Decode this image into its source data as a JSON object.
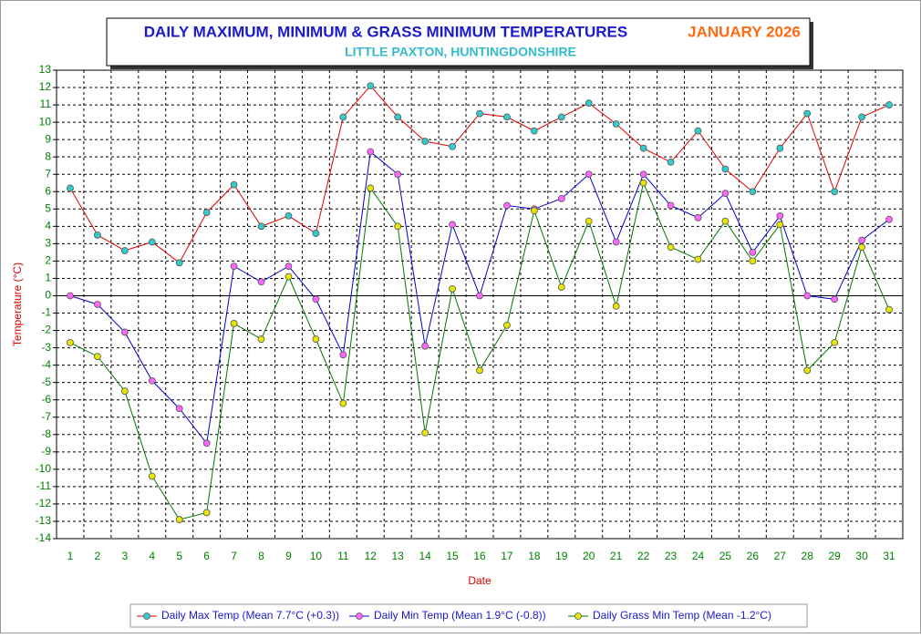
{
  "chart_data": {
    "type": "line",
    "title": "DAILY MAXIMUM, MINIMUM & GRASS MINIMUM TEMPERATURES",
    "period": "JANUARY 2026",
    "subtitle": "LITTLE PAXTON, HUNTINGDONSHIRE",
    "x_label": "Date",
    "y_label": "Temperature (°C)",
    "categories": [
      "1",
      "2",
      "3",
      "4",
      "5",
      "6",
      "7",
      "8",
      "9",
      "10",
      "11",
      "12",
      "13",
      "14",
      "15",
      "16",
      "17",
      "18",
      "19",
      "20",
      "21",
      "22",
      "23",
      "24",
      "25",
      "26",
      "27",
      "28",
      "29",
      "30",
      "31"
    ],
    "ylim": [
      -14,
      13
    ],
    "yticks": [
      -14,
      -13,
      -12,
      -11,
      -10,
      -9,
      -8,
      -7,
      -6,
      -5,
      -4,
      -3,
      -2,
      -1,
      0,
      1,
      2,
      3,
      4,
      5,
      6,
      7,
      8,
      9,
      10,
      11,
      12,
      13
    ],
    "grid": true,
    "series": [
      {
        "name": "Daily Max Temp (Mean 7.7°C (+0.3))",
        "color": "#e00000",
        "marker_color": "#33cccc",
        "values": [
          6.2,
          3.5,
          2.6,
          3.1,
          1.9,
          4.8,
          6.4,
          4.0,
          4.6,
          3.6,
          10.3,
          12.1,
          10.3,
          8.9,
          8.6,
          10.5,
          10.3,
          9.5,
          10.3,
          11.1,
          9.9,
          8.5,
          7.7,
          9.5,
          7.3,
          6.0,
          8.5,
          10.5,
          6.0,
          10.3,
          11.0
        ]
      },
      {
        "name": "Daily Min Temp (Mean 1.9°C (-0.8))",
        "color": "#0000cc",
        "marker_color": "#ff66ff",
        "values": [
          0.0,
          -0.5,
          -2.1,
          -4.9,
          -6.5,
          -8.5,
          1.7,
          0.8,
          1.7,
          -0.2,
          -3.4,
          8.3,
          7.0,
          -2.9,
          4.1,
          0.0,
          5.2,
          5.0,
          5.6,
          7.0,
          3.1,
          7.0,
          5.2,
          4.5,
          5.9,
          2.5,
          4.6,
          0.0,
          -0.2,
          3.2,
          4.4
        ]
      },
      {
        "name": "Daily Grass Min Temp (Mean -1.2°C)",
        "color": "#007700",
        "marker_color": "#e6e600",
        "values": [
          -2.7,
          -3.5,
          -5.5,
          -10.4,
          -12.9,
          -12.5,
          -1.6,
          -2.5,
          1.1,
          -2.5,
          -6.2,
          6.2,
          4.0,
          -7.9,
          0.4,
          -4.3,
          -1.7,
          4.9,
          0.5,
          4.3,
          -0.6,
          6.5,
          2.8,
          2.1,
          4.3,
          2.0,
          4.1,
          -4.3,
          -2.7,
          2.8,
          -0.8
        ]
      }
    ]
  }
}
